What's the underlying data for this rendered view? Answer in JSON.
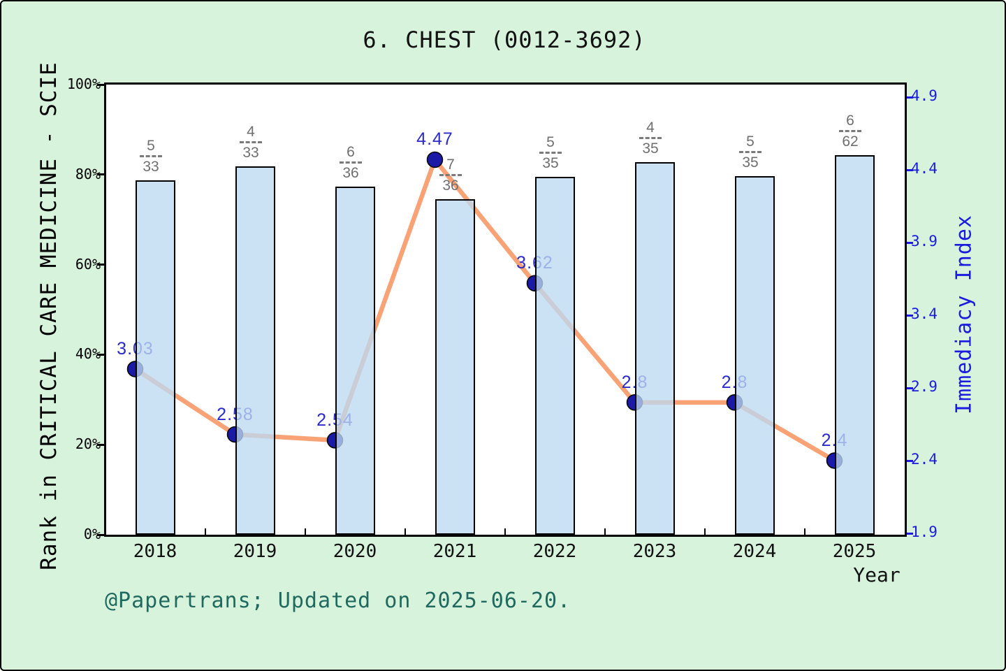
{
  "title": "6.  CHEST (0012-3692)",
  "footer": "@Papertrans; Updated on 2025-06-20.",
  "colors": {
    "background": "#d8f3dc",
    "plot_background": "#ffffff",
    "frame": "#000000",
    "bar_fill_base": "#bdd8f1",
    "bar_fill_alpha": "0.78",
    "bar_border": "#000000",
    "line": "#f8a276",
    "marker": "#1a1aa6",
    "marker_edge": "#000000",
    "value_label": "#2b2bcc",
    "right_axis": "#1b1be0",
    "fraction_label": "#6f6f6f",
    "footer_text": "#20695f"
  },
  "chart_data": {
    "type": "bar",
    "title": "6.  CHEST (0012-3692)",
    "xlabel": "Year",
    "categories": [
      "2018",
      "2019",
      "2020",
      "2021",
      "2022",
      "2023",
      "2024",
      "2025"
    ],
    "series": [
      {
        "name": "Rank in CRITICAL CARE MEDICINE - SCIE",
        "type": "bar",
        "unit": "percent",
        "values": [
          78.7,
          81.8,
          77.3,
          74.5,
          79.5,
          82.8,
          79.6,
          84.3
        ],
        "rank_fractions": [
          {
            "rank": "5",
            "total": "33"
          },
          {
            "rank": "4",
            "total": "33"
          },
          {
            "rank": "6",
            "total": "36"
          },
          {
            "rank": "7",
            "total": "36"
          },
          {
            "rank": "5",
            "total": "35"
          },
          {
            "rank": "4",
            "total": "35"
          },
          {
            "rank": "5",
            "total": "35"
          },
          {
            "rank": "6",
            "total": "62"
          }
        ]
      },
      {
        "name": "Immediacy Index",
        "type": "line",
        "values": [
          3.03,
          2.58,
          2.54,
          4.47,
          3.62,
          2.8,
          2.8,
          2.4
        ],
        "labels": [
          "3.03",
          "2.58",
          "2.54",
          "4.47",
          "3.62",
          "2.8",
          "2.8",
          "2.4"
        ]
      }
    ],
    "left_axis": {
      "label": "Rank in CRITICAL CARE MEDICINE - SCIE",
      "ticks": [
        "0%",
        "20%",
        "40%",
        "60%",
        "80%",
        "100%"
      ],
      "tick_values": [
        0,
        20,
        40,
        60,
        80,
        100
      ],
      "min": 0,
      "max": 100
    },
    "right_axis": {
      "label": "Immediacy Index",
      "ticks": [
        "1.9",
        "2.4",
        "2.9",
        "3.4",
        "3.9",
        "4.4",
        "4.9"
      ],
      "min": 1.9,
      "max": 4.9
    },
    "grid": false,
    "legend": "none"
  }
}
